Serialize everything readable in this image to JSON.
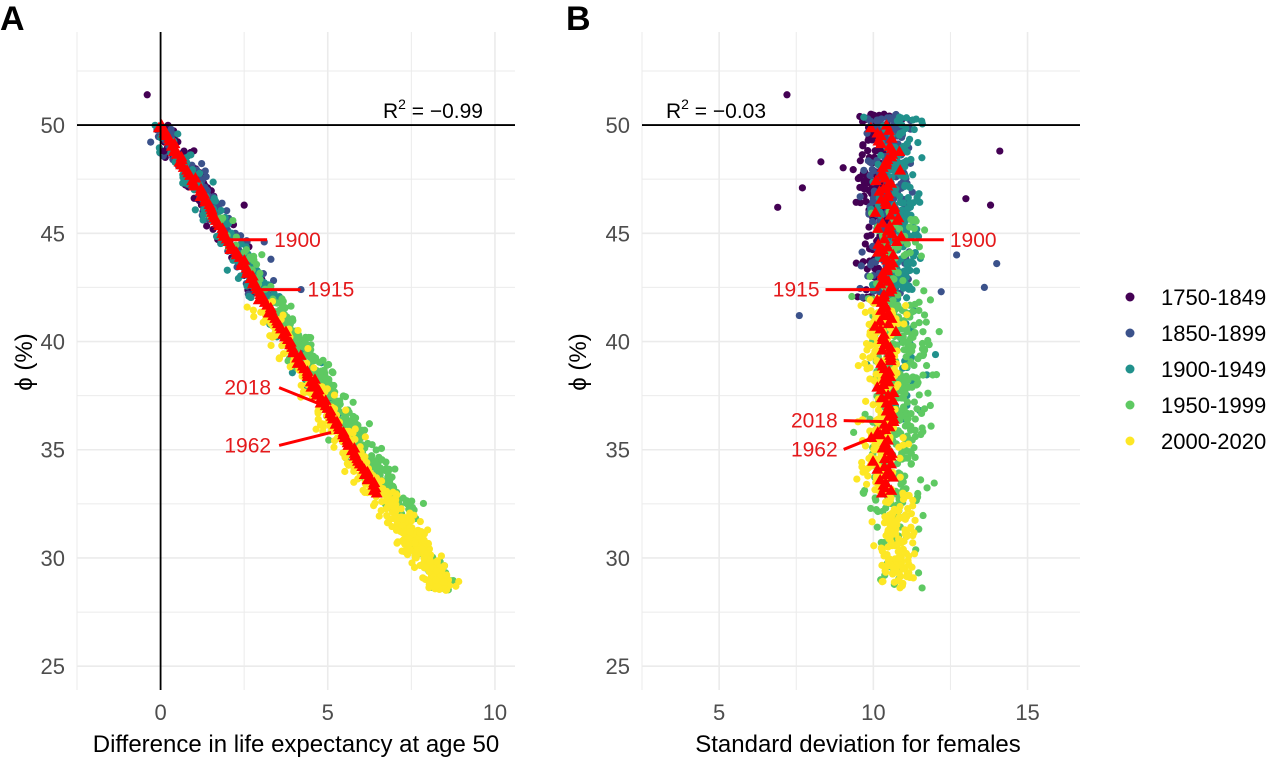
{
  "chart_data": [
    {
      "type": "scatter",
      "panel_label": "A",
      "xlabel": "Difference in life expectancy at age 50",
      "ylabel": "ϕ (%)",
      "xlim": [
        -2.5,
        10.6
      ],
      "ylim": [
        23.9,
        54.3
      ],
      "xticks": [
        0,
        5,
        10
      ],
      "yticks": [
        25,
        30,
        35,
        40,
        45,
        50
      ],
      "grid": true,
      "reference_lines": {
        "hline": 50,
        "vline": 0
      },
      "annotation": {
        "text": "R",
        "sup": "2",
        "rest": " = −0.99",
        "position": "top-right"
      },
      "point_cloud_trend": {
        "description": "tight negative linear band",
        "from": [
          0,
          50
        ],
        "to": [
          8.5,
          28.5
        ]
      },
      "outliers": [
        [
          -0.4,
          51.4
        ],
        [
          0.1,
          48.8
        ],
        [
          0.7,
          48.8
        ],
        [
          2.5,
          46.3
        ],
        [
          3.1,
          44.6
        ],
        [
          4.2,
          42.4
        ],
        [
          3.3,
          43.8
        ]
      ],
      "red_triangle_series": {
        "name": "highlighted country",
        "from": [
          0,
          50
        ],
        "to": [
          6.5,
          33
        ]
      },
      "year_labels": [
        {
          "text": "1900",
          "x": 1.9,
          "y": 44.7
        },
        {
          "text": "1915",
          "x": 2.9,
          "y": 42.4
        },
        {
          "text": "2018",
          "x": 5.1,
          "y": 36.9
        },
        {
          "text": "1962",
          "x": 5.1,
          "y": 35.8
        }
      ]
    },
    {
      "type": "scatter",
      "panel_label": "B",
      "xlabel": "Standard deviation for females",
      "ylabel": "ϕ (%)",
      "xlim": [
        2.5,
        16.7
      ],
      "ylim": [
        23.9,
        54.3
      ],
      "xticks": [
        5,
        10,
        15
      ],
      "yticks": [
        25,
        30,
        35,
        40,
        45,
        50
      ],
      "grid": true,
      "reference_lines": {
        "hline": 50
      },
      "annotation": {
        "text": "R",
        "sup": "2",
        "rest": " = −0.03",
        "position": "top-left"
      },
      "point_cloud_trend": {
        "description": "vertical band near x≈10.5",
        "x_center": 10.5,
        "y_range": [
          28.5,
          50.5
        ]
      },
      "outliers": [
        [
          7.2,
          51.4
        ],
        [
          6.9,
          46.2
        ],
        [
          7.7,
          47.1
        ],
        [
          8.3,
          48.3
        ],
        [
          7.6,
          41.2
        ],
        [
          14.1,
          48.8
        ],
        [
          13.8,
          46.3
        ],
        [
          14.0,
          43.6
        ],
        [
          13.0,
          46.6
        ],
        [
          12.7,
          44.0
        ],
        [
          13.6,
          42.5
        ],
        [
          12.2,
          42.3
        ]
      ],
      "red_triangle_series": {
        "name": "highlighted country",
        "x_center": 10.4,
        "y_range": [
          33,
          50
        ]
      },
      "year_labels": [
        {
          "text": "1900",
          "x": 10.6,
          "y": 44.7
        },
        {
          "text": "1915",
          "x": 10.2,
          "y": 42.4
        },
        {
          "text": "2018",
          "x": 10.4,
          "y": 36.3
        },
        {
          "text": "1962",
          "x": 10.4,
          "y": 35.8
        }
      ]
    }
  ],
  "legend": {
    "position": "right",
    "items": [
      {
        "label": "1750-1849",
        "color": "#440154"
      },
      {
        "label": "1850-1899",
        "color": "#3b528b"
      },
      {
        "label": "1900-1949",
        "color": "#21918c"
      },
      {
        "label": "1950-1999",
        "color": "#5ec962"
      },
      {
        "label": "2000-2020",
        "color": "#fde725"
      }
    ]
  },
  "highlight_color": "#ff0000",
  "label_color": "#e41a1c"
}
